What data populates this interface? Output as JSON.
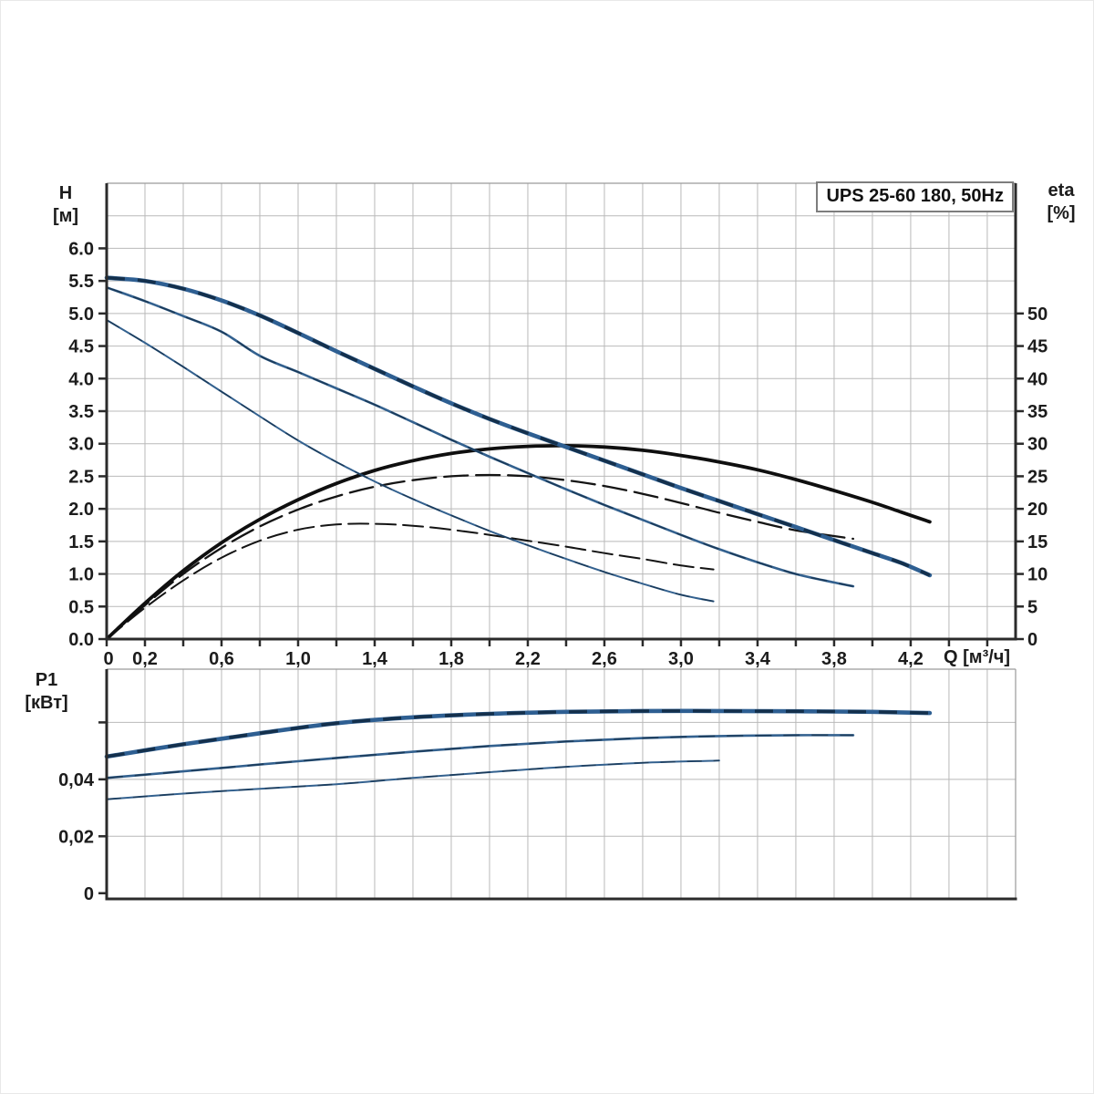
{
  "figure": {
    "title_box_label": "UPS 25-60 180, 50Hz"
  },
  "axis_titles": {
    "h_line1": "H",
    "h_line2": "[м]",
    "eta_line1": "eta",
    "eta_line2": "[%]",
    "p_line1": "P1",
    "p_line2": "[кВт]",
    "q_title": "Q [м³/ч]"
  },
  "colors": {
    "grid": "#b9b9b9",
    "axis": "#2b2b2b",
    "text": "#1c1c1c",
    "blue": "#33618f",
    "blue_thick": "#2e5f92",
    "blue_overlay": "#1b3a58",
    "black_curve": "#141414"
  },
  "chart_data": [
    {
      "id": "head-eta-chart",
      "type": "line",
      "title": "UPS 25-60 180, 50Hz",
      "xlabel": "Q [м³/ч]",
      "ylabel": "H [м]",
      "y2label": "eta [%]",
      "xlim": [
        0,
        4.748
      ],
      "ylim": [
        0,
        7.0
      ],
      "y2lim": [
        0,
        70
      ],
      "x_grid_step": 0.2,
      "y_grid_step": 0.5,
      "grid": true,
      "legend": "none",
      "x_ticks": [
        {
          "v": 0,
          "label": "0"
        },
        {
          "v": 0.2,
          "label": "0,2"
        },
        {
          "v": 0.6,
          "label": "0,6"
        },
        {
          "v": 1.0,
          "label": "1,0"
        },
        {
          "v": 1.4,
          "label": "1,4"
        },
        {
          "v": 1.8,
          "label": "1,8"
        },
        {
          "v": 2.2,
          "label": "2,2"
        },
        {
          "v": 2.6,
          "label": "2,6"
        },
        {
          "v": 3.0,
          "label": "3,0"
        },
        {
          "v": 3.4,
          "label": "3,4"
        },
        {
          "v": 3.8,
          "label": "3,8"
        },
        {
          "v": 4.2,
          "label": "4,2"
        }
      ],
      "x_minor_tick_step": 0.2,
      "y_ticks": [
        {
          "v": 6.0,
          "label": "6.0"
        },
        {
          "v": 5.5,
          "label": "5.5"
        },
        {
          "v": 5.0,
          "label": "5.0"
        },
        {
          "v": 4.5,
          "label": "4.5"
        },
        {
          "v": 4.0,
          "label": "4.0"
        },
        {
          "v": 3.5,
          "label": "3.5"
        },
        {
          "v": 3.0,
          "label": "3.0"
        },
        {
          "v": 2.5,
          "label": "2.5"
        },
        {
          "v": 2.0,
          "label": "2.0"
        },
        {
          "v": 1.5,
          "label": "1.5"
        },
        {
          "v": 1.0,
          "label": "1.0"
        },
        {
          "v": 0.5,
          "label": "0.5"
        },
        {
          "v": 0.0,
          "label": "0.0"
        }
      ],
      "y2_ticks": [
        {
          "v": 50,
          "label": "50"
        },
        {
          "v": 45,
          "label": "45"
        },
        {
          "v": 40,
          "label": "40"
        },
        {
          "v": 35,
          "label": "35"
        },
        {
          "v": 30,
          "label": "30"
        },
        {
          "v": 25,
          "label": "25"
        },
        {
          "v": 20,
          "label": "20"
        },
        {
          "v": 15,
          "label": "15"
        },
        {
          "v": 10,
          "label": "10"
        },
        {
          "v": 5,
          "label": "5"
        },
        {
          "v": 0,
          "label": "0"
        }
      ],
      "series": [
        {
          "name": "eta-speed-1",
          "axis": "y2",
          "color": "#141414",
          "width": 2,
          "dash": "22 8",
          "x": [
            0,
            0.2,
            0.4,
            0.6,
            0.8,
            1.0,
            1.2,
            1.4,
            1.6,
            1.8,
            2.0,
            2.2,
            2.4,
            2.6,
            2.8,
            3.0,
            3.17
          ],
          "y": [
            0,
            4.8,
            9.0,
            12.5,
            15.1,
            16.8,
            17.6,
            17.7,
            17.4,
            16.8,
            16.0,
            15.1,
            14.2,
            13.2,
            12.3,
            11.3,
            10.7
          ]
        },
        {
          "name": "eta-speed-2",
          "axis": "y2",
          "color": "#141414",
          "width": 2.3,
          "dash": "26 9",
          "x": [
            0,
            0.2,
            0.4,
            0.6,
            0.8,
            1.0,
            1.2,
            1.4,
            1.6,
            1.8,
            2.0,
            2.2,
            2.4,
            2.6,
            2.8,
            3.0,
            3.2,
            3.4,
            3.6,
            3.9
          ],
          "y": [
            0,
            5.2,
            10.0,
            14.0,
            17.3,
            19.9,
            21.9,
            23.4,
            24.4,
            25.0,
            25.2,
            25.0,
            24.4,
            23.5,
            22.3,
            20.9,
            19.4,
            18.0,
            16.7,
            15.4
          ]
        },
        {
          "name": "eta-speed-3",
          "axis": "y2",
          "color": "#0f0f0f",
          "width": 3.8,
          "dash": "",
          "x": [
            0,
            0.2,
            0.4,
            0.6,
            0.8,
            1.0,
            1.2,
            1.4,
            1.6,
            1.8,
            2.0,
            2.2,
            2.4,
            2.6,
            2.8,
            3.0,
            3.2,
            3.4,
            3.6,
            3.8,
            4.0,
            4.15,
            4.3
          ],
          "y": [
            0,
            5.5,
            10.5,
            14.8,
            18.4,
            21.4,
            23.9,
            25.9,
            27.4,
            28.5,
            29.2,
            29.6,
            29.7,
            29.5,
            29.0,
            28.2,
            27.2,
            26.0,
            24.5,
            22.8,
            21.0,
            19.5,
            18.0
          ]
        },
        {
          "name": "head-speed-1",
          "axis": "y",
          "color": "#33618f",
          "width": 2,
          "overlay_color": "#1b3a58",
          "overlay_dash": "16 13",
          "x": [
            0,
            0.2,
            0.4,
            0.6,
            0.8,
            1.0,
            1.2,
            1.4,
            1.6,
            1.8,
            2.0,
            2.2,
            2.4,
            2.6,
            2.8,
            3.0,
            3.17
          ],
          "y": [
            4.9,
            4.55,
            4.18,
            3.8,
            3.42,
            3.05,
            2.72,
            2.42,
            2.15,
            1.9,
            1.66,
            1.44,
            1.23,
            1.03,
            0.85,
            0.68,
            0.58
          ]
        },
        {
          "name": "head-speed-2",
          "axis": "y",
          "color": "#33618f",
          "width": 2.6,
          "overlay_color": "#1b3a58",
          "overlay_dash": "18 13",
          "x": [
            0,
            0.2,
            0.4,
            0.6,
            0.8,
            1.0,
            1.2,
            1.4,
            1.6,
            1.8,
            2.0,
            2.2,
            2.4,
            2.6,
            2.8,
            3.0,
            3.2,
            3.4,
            3.6,
            3.8,
            3.9
          ],
          "y": [
            5.4,
            5.19,
            4.96,
            4.72,
            4.35,
            4.1,
            3.85,
            3.6,
            3.33,
            3.06,
            2.8,
            2.55,
            2.3,
            2.06,
            1.83,
            1.6,
            1.38,
            1.18,
            1.0,
            0.87,
            0.81
          ]
        },
        {
          "name": "head-speed-3",
          "axis": "y",
          "color": "#2e5f92",
          "width": 4.6,
          "overlay_color": "#14304c",
          "overlay_dash": "20 14",
          "x": [
            0,
            0.2,
            0.4,
            0.6,
            0.8,
            1.0,
            1.2,
            1.4,
            1.6,
            1.8,
            2.0,
            2.2,
            2.4,
            2.6,
            2.8,
            3.0,
            3.2,
            3.4,
            3.6,
            3.8,
            4.0,
            4.15,
            4.3
          ],
          "y": [
            5.55,
            5.5,
            5.38,
            5.2,
            4.97,
            4.7,
            4.42,
            4.15,
            3.88,
            3.62,
            3.38,
            3.16,
            2.95,
            2.74,
            2.53,
            2.32,
            2.12,
            1.92,
            1.72,
            1.52,
            1.32,
            1.17,
            0.98
          ]
        }
      ]
    },
    {
      "id": "power-chart",
      "type": "line",
      "title": "",
      "xlabel": "Q [м³/ч]",
      "ylabel": "P1 [кВт]",
      "xlim": [
        0,
        4.748
      ],
      "ylim": [
        -0.002,
        0.0787
      ],
      "x_grid_step": 0.2,
      "y_grid_lines": [
        0.02,
        0.04,
        0.06
      ],
      "grid": true,
      "y_ticks": [
        {
          "v": 0.04,
          "label": "0,04"
        },
        {
          "v": 0.02,
          "label": "0,02"
        },
        {
          "v": 0,
          "label": "0"
        }
      ],
      "y_tick_marks": [
        0.06,
        0.04,
        0.02,
        0
      ],
      "series": [
        {
          "name": "p1-speed-1",
          "axis": "y",
          "color": "#33618f",
          "width": 2,
          "overlay_color": "#1b3a58",
          "overlay_dash": "16 13",
          "x": [
            0,
            0.4,
            0.8,
            1.2,
            1.6,
            2.0,
            2.4,
            2.8,
            3.2
          ],
          "y": [
            0.033,
            0.035,
            0.0367,
            0.0383,
            0.0405,
            0.0425,
            0.0444,
            0.0458,
            0.0466
          ]
        },
        {
          "name": "p1-speed-2",
          "axis": "y",
          "color": "#33618f",
          "width": 2.6,
          "overlay_color": "#1b3a58",
          "overlay_dash": "18 13",
          "x": [
            0,
            0.4,
            0.8,
            1.2,
            1.6,
            2.0,
            2.4,
            2.8,
            3.2,
            3.6,
            3.9
          ],
          "y": [
            0.0405,
            0.0428,
            0.0452,
            0.0475,
            0.0497,
            0.0517,
            0.0533,
            0.0545,
            0.0552,
            0.0555,
            0.0555
          ]
        },
        {
          "name": "p1-speed-3",
          "axis": "y",
          "color": "#2e5f92",
          "width": 4.6,
          "overlay_color": "#14304c",
          "overlay_dash": "20 14",
          "x": [
            0,
            0.4,
            0.8,
            1.2,
            1.6,
            2.0,
            2.4,
            2.8,
            3.2,
            3.6,
            4.0,
            4.3
          ],
          "y": [
            0.048,
            0.0523,
            0.0562,
            0.0597,
            0.0618,
            0.063,
            0.0637,
            0.064,
            0.064,
            0.0639,
            0.0637,
            0.0633
          ]
        }
      ]
    }
  ]
}
